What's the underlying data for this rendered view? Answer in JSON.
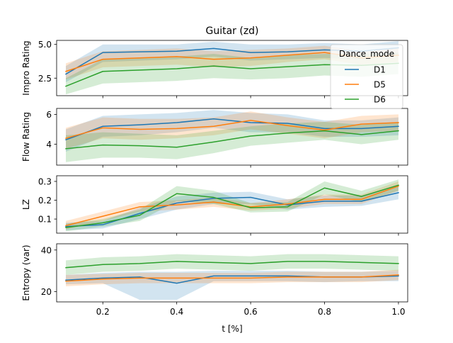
{
  "chart_data": {
    "type": "line",
    "title": "Guitar (zd)",
    "xlabel": "t [%]",
    "x": [
      0.1,
      0.2,
      0.3,
      0.4,
      0.5,
      0.6,
      0.7,
      0.8,
      0.9,
      1.0
    ],
    "xlim": [
      0.075,
      1.025
    ],
    "x_ticks": [
      0.2,
      0.4,
      0.6,
      0.8,
      1.0
    ],
    "x_tick_labels": [
      "0.2",
      "0.4",
      "0.6",
      "0.8",
      "1.0"
    ],
    "legend": {
      "title": "Dance_mode",
      "placement": "upper-right",
      "entries": [
        "D1",
        "D5",
        "D6"
      ]
    },
    "colors": {
      "D1": "#1f77b4",
      "D5": "#ff7f0e",
      "D6": "#2ca02c"
    },
    "grid": false,
    "panels": [
      {
        "ylabel": "Impro Rating",
        "ylim": [
          1.2,
          5.3
        ],
        "y_ticks": [
          2.5,
          5.0
        ],
        "y_tick_labels": [
          "2.5",
          "5.0"
        ],
        "series": [
          {
            "name": "D1",
            "values": [
              2.8,
              4.4,
              4.45,
              4.5,
              4.7,
              4.4,
              4.45,
              4.6,
              4.5,
              4.75
            ],
            "lower": [
              2.2,
              3.7,
              3.8,
              3.9,
              4.1,
              3.8,
              3.9,
              4.0,
              3.9,
              4.2
            ],
            "upper": [
              3.4,
              5.0,
              5.0,
              5.0,
              5.2,
              5.0,
              5.0,
              5.1,
              5.0,
              5.25
            ]
          },
          {
            "name": "D5",
            "values": [
              3.0,
              3.9,
              4.0,
              4.1,
              3.9,
              4.0,
              4.2,
              4.4,
              4.0,
              4.2
            ],
            "lower": [
              2.4,
              3.3,
              3.4,
              3.5,
              3.3,
              3.4,
              3.7,
              3.9,
              3.5,
              3.7
            ],
            "upper": [
              3.6,
              4.5,
              4.6,
              4.7,
              4.5,
              4.6,
              4.7,
              4.9,
              4.5,
              4.7
            ]
          },
          {
            "name": "D6",
            "values": [
              1.9,
              3.0,
              3.1,
              3.2,
              3.4,
              3.2,
              3.35,
              3.5,
              3.45,
              3.6
            ],
            "lower": [
              1.3,
              2.1,
              2.2,
              2.3,
              2.5,
              2.4,
              2.5,
              2.7,
              2.6,
              2.8
            ],
            "upper": [
              2.5,
              3.9,
              4.0,
              4.1,
              4.3,
              4.0,
              4.2,
              4.3,
              4.3,
              4.4
            ]
          }
        ]
      },
      {
        "ylabel": "Flow Rating",
        "ylim": [
          2.6,
          6.4
        ],
        "y_ticks": [
          4,
          6
        ],
        "y_tick_labels": [
          "4",
          "6"
        ],
        "series": [
          {
            "name": "D1",
            "values": [
              4.3,
              5.2,
              5.3,
              5.45,
              5.7,
              5.45,
              5.4,
              5.05,
              5.05,
              5.2
            ],
            "lower": [
              3.5,
              4.5,
              4.6,
              4.8,
              5.1,
              4.8,
              4.8,
              4.5,
              4.5,
              4.6
            ],
            "upper": [
              5.0,
              5.9,
              6.0,
              6.1,
              6.3,
              6.1,
              6.0,
              5.6,
              5.6,
              5.8
            ]
          },
          {
            "name": "D5",
            "values": [
              4.4,
              5.1,
              5.0,
              5.05,
              5.2,
              5.6,
              5.25,
              4.95,
              5.35,
              5.45
            ],
            "lower": [
              3.7,
              4.4,
              4.3,
              4.4,
              4.6,
              5.0,
              4.7,
              4.4,
              4.8,
              4.9
            ],
            "upper": [
              5.1,
              5.8,
              5.7,
              5.7,
              5.8,
              6.2,
              5.8,
              5.5,
              5.9,
              6.0
            ]
          },
          {
            "name": "D6",
            "values": [
              3.7,
              3.95,
              3.9,
              3.8,
              4.15,
              4.55,
              4.75,
              4.9,
              4.65,
              4.9
            ],
            "lower": [
              2.8,
              3.1,
              3.1,
              3.0,
              3.4,
              3.9,
              4.1,
              4.3,
              4.0,
              4.3
            ],
            "upper": [
              4.6,
              4.8,
              4.7,
              4.6,
              4.9,
              5.2,
              5.4,
              5.5,
              5.3,
              5.5
            ]
          }
        ]
      },
      {
        "ylabel": "LZ",
        "ylim": [
          0.025,
          0.33
        ],
        "y_ticks": [
          0.1,
          0.2,
          0.3
        ],
        "y_tick_labels": [
          "0.1",
          "0.2",
          "0.3"
        ],
        "series": [
          {
            "name": "D1",
            "values": [
              0.06,
              0.07,
              0.13,
              0.185,
              0.21,
              0.215,
              0.175,
              0.195,
              0.195,
              0.24
            ],
            "lower": [
              0.04,
              0.05,
              0.1,
              0.15,
              0.18,
              0.18,
              0.15,
              0.165,
              0.17,
              0.205
            ],
            "upper": [
              0.08,
              0.09,
              0.16,
              0.22,
              0.24,
              0.245,
              0.205,
              0.225,
              0.225,
              0.275
            ]
          },
          {
            "name": "D5",
            "values": [
              0.065,
              0.115,
              0.165,
              0.175,
              0.19,
              0.165,
              0.18,
              0.205,
              0.205,
              0.275
            ],
            "lower": [
              0.045,
              0.09,
              0.14,
              0.15,
              0.165,
              0.145,
              0.155,
              0.18,
              0.18,
              0.25
            ],
            "upper": [
              0.09,
              0.14,
              0.19,
              0.2,
              0.215,
              0.185,
              0.205,
              0.23,
              0.23,
              0.3
            ]
          },
          {
            "name": "D6",
            "values": [
              0.055,
              0.08,
              0.12,
              0.235,
              0.215,
              0.16,
              0.165,
              0.265,
              0.22,
              0.28
            ],
            "lower": [
              0.035,
              0.06,
              0.09,
              0.195,
              0.18,
              0.135,
              0.14,
              0.23,
              0.19,
              0.25
            ],
            "upper": [
              0.075,
              0.1,
              0.15,
              0.275,
              0.25,
              0.185,
              0.19,
              0.3,
              0.25,
              0.31
            ]
          }
        ]
      },
      {
        "ylabel": "Entropy (var)",
        "ylim": [
          15,
          43
        ],
        "y_ticks": [
          20,
          40
        ],
        "y_tick_labels": [
          "20",
          "40"
        ],
        "series": [
          {
            "name": "D1",
            "values": [
              25.5,
              26.5,
              27,
              24,
              27.5,
              27.5,
              27.5,
              27,
              27,
              27.5
            ],
            "lower": [
              23.5,
              24,
              16,
              16,
              25,
              25,
              25,
              24.5,
              25,
              25
            ],
            "upper": [
              28,
              29,
              29.5,
              29.5,
              30,
              30,
              30,
              29.5,
              29.5,
              30
            ]
          },
          {
            "name": "D5",
            "values": [
              25,
              26,
              26.5,
              26.5,
              26.5,
              26.5,
              27,
              27,
              27,
              28
            ],
            "lower": [
              22.5,
              23.5,
              24,
              24,
              24,
              24,
              24.5,
              24.5,
              24.5,
              25.5
            ],
            "upper": [
              28,
              28.5,
              29,
              29,
              29,
              29,
              29.5,
              29.5,
              29.5,
              30.5
            ]
          },
          {
            "name": "D6",
            "values": [
              31.5,
              33,
              33.5,
              34.5,
              34,
              33.5,
              34.5,
              34.5,
              34,
              33.5
            ],
            "lower": [
              28,
              29.5,
              30,
              31,
              30.5,
              30,
              31,
              31,
              30.5,
              30
            ],
            "upper": [
              35,
              36.5,
              37,
              38,
              37.5,
              37,
              38,
              38,
              37.5,
              37
            ]
          }
        ]
      }
    ]
  }
}
